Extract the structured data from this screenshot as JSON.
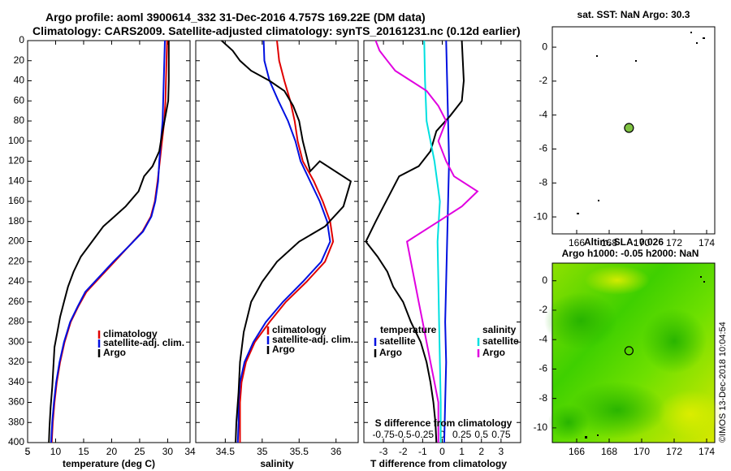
{
  "title": {
    "line1": "Argo profile: aoml 3900614_332 31-Dec-2016 4.757S 169.22E (DM data)",
    "line2": "Climatology: CARS2009. Satellite-adjusted climatology: synTS_20161231.nc (0.12d earlier)"
  },
  "colors": {
    "clim": "#e00000",
    "sat": "#0010e0",
    "argo": "#000000",
    "sat_s": "#00e0e0",
    "argo_s": "#e000e0"
  },
  "depth_ticks": [
    "0",
    "20",
    "40",
    "60",
    "80",
    "100",
    "120",
    "140",
    "160",
    "180",
    "200",
    "220",
    "240",
    "260",
    "280",
    "300",
    "320",
    "340",
    "360",
    "380",
    "400"
  ],
  "chart_data": [
    {
      "type": "line",
      "name": "temperature",
      "xlabel": "temperature (deg C)",
      "ylabel": "depth",
      "xlim": [
        5,
        34
      ],
      "ylim": [
        0,
        400
      ],
      "xticks": [
        "5",
        "10",
        "15",
        "20",
        "25",
        "30"
      ],
      "legend": [
        "climatology",
        "satellite-adj. clim.",
        "Argo"
      ],
      "series": [
        {
          "name": "climatology",
          "color_key": "clim",
          "points": [
            [
              29.9,
              0
            ],
            [
              29.8,
              20
            ],
            [
              29.7,
              40
            ],
            [
              29.6,
              60
            ],
            [
              29.4,
              80
            ],
            [
              29,
              100
            ],
            [
              28.6,
              120
            ],
            [
              28.2,
              140
            ],
            [
              27.7,
              160
            ],
            [
              27,
              175
            ],
            [
              25.5,
              190
            ],
            [
              23,
              205
            ],
            [
              20.5,
              220
            ],
            [
              18,
              235
            ],
            [
              15.5,
              250
            ],
            [
              14,
              265
            ],
            [
              12.7,
              280
            ],
            [
              11.6,
              300
            ],
            [
              10.8,
              320
            ],
            [
              10.2,
              340
            ],
            [
              9.8,
              360
            ],
            [
              9.5,
              380
            ],
            [
              9.3,
              400
            ]
          ]
        },
        {
          "name": "satellite-adj. clim.",
          "color_key": "sat",
          "points": [
            [
              29.5,
              0
            ],
            [
              29.4,
              20
            ],
            [
              29.3,
              40
            ],
            [
              29.2,
              60
            ],
            [
              29.1,
              80
            ],
            [
              28.8,
              100
            ],
            [
              28.5,
              120
            ],
            [
              28.3,
              140
            ],
            [
              27.8,
              160
            ],
            [
              27.1,
              175
            ],
            [
              25.6,
              190
            ],
            [
              23,
              205
            ],
            [
              20.3,
              220
            ],
            [
              17.8,
              235
            ],
            [
              15.3,
              250
            ],
            [
              13.9,
              265
            ],
            [
              12.6,
              280
            ],
            [
              11.5,
              300
            ],
            [
              10.7,
              320
            ],
            [
              10.1,
              340
            ],
            [
              9.7,
              360
            ],
            [
              9.4,
              380
            ],
            [
              9.2,
              400
            ]
          ]
        },
        {
          "name": "Argo",
          "color_key": "argo",
          "points": [
            [
              30.2,
              0
            ],
            [
              30.2,
              20
            ],
            [
              30.2,
              40
            ],
            [
              30.1,
              60
            ],
            [
              29.6,
              75
            ],
            [
              29.1,
              90
            ],
            [
              28.5,
              110
            ],
            [
              27.3,
              125
            ],
            [
              25.8,
              135
            ],
            [
              24.8,
              150
            ],
            [
              22.5,
              165
            ],
            [
              20.5,
              175
            ],
            [
              18.5,
              185
            ],
            [
              16.5,
              200
            ],
            [
              14.5,
              215
            ],
            [
              13.2,
              230
            ],
            [
              12.2,
              245
            ],
            [
              11.5,
              260
            ],
            [
              10.8,
              275
            ],
            [
              10.3,
              290
            ],
            [
              9.8,
              305
            ],
            [
              9.6,
              325
            ],
            [
              9.4,
              345
            ],
            [
              9.1,
              365
            ],
            [
              8.9,
              385
            ],
            [
              8.8,
              400
            ]
          ]
        }
      ]
    },
    {
      "type": "line",
      "name": "salinity",
      "xlabel": "salinity",
      "ylabel": "depth",
      "xlim": [
        34.1,
        36.3
      ],
      "ylim": [
        0,
        400
      ],
      "xticks": [
        "34.5",
        "35",
        "35.5",
        "36"
      ],
      "legend": [
        "climatology",
        "satellite-adj. clim.",
        "Argo"
      ],
      "series": [
        {
          "name": "climatology",
          "color_key": "clim",
          "points": [
            [
              35.2,
              0
            ],
            [
              35.23,
              20
            ],
            [
              35.3,
              40
            ],
            [
              35.38,
              60
            ],
            [
              35.44,
              80
            ],
            [
              35.48,
              100
            ],
            [
              35.55,
              120
            ],
            [
              35.7,
              140
            ],
            [
              35.82,
              160
            ],
            [
              35.92,
              180
            ],
            [
              35.96,
              200
            ],
            [
              35.85,
              220
            ],
            [
              35.6,
              240
            ],
            [
              35.32,
              260
            ],
            [
              35.1,
              280
            ],
            [
              34.9,
              300
            ],
            [
              34.78,
              320
            ],
            [
              34.72,
              340
            ],
            [
              34.7,
              360
            ],
            [
              34.7,
              380
            ],
            [
              34.7,
              400
            ]
          ]
        },
        {
          "name": "satellite-adj. clim.",
          "color_key": "sat",
          "points": [
            [
              35.02,
              0
            ],
            [
              35.03,
              20
            ],
            [
              35.1,
              40
            ],
            [
              35.22,
              60
            ],
            [
              35.35,
              80
            ],
            [
              35.45,
              100
            ],
            [
              35.52,
              120
            ],
            [
              35.65,
              140
            ],
            [
              35.78,
              160
            ],
            [
              35.88,
              180
            ],
            [
              35.92,
              200
            ],
            [
              35.8,
              220
            ],
            [
              35.55,
              240
            ],
            [
              35.28,
              260
            ],
            [
              35.05,
              280
            ],
            [
              34.88,
              300
            ],
            [
              34.76,
              320
            ],
            [
              34.7,
              340
            ],
            [
              34.68,
              360
            ],
            [
              34.68,
              380
            ],
            [
              34.67,
              400
            ]
          ]
        },
        {
          "name": "Argo",
          "color_key": "argo",
          "points": [
            [
              34.45,
              0
            ],
            [
              34.6,
              10
            ],
            [
              34.7,
              20
            ],
            [
              34.85,
              30
            ],
            [
              35.1,
              40
            ],
            [
              35.3,
              50
            ],
            [
              35.42,
              65
            ],
            [
              35.5,
              80
            ],
            [
              35.55,
              100
            ],
            [
              35.6,
              115
            ],
            [
              35.65,
              130
            ],
            [
              35.78,
              120
            ],
            [
              36.2,
              140
            ],
            [
              36.1,
              165
            ],
            [
              35.85,
              185
            ],
            [
              35.5,
              200
            ],
            [
              35.2,
              220
            ],
            [
              35.0,
              240
            ],
            [
              34.85,
              260
            ],
            [
              34.75,
              290
            ],
            [
              34.7,
              320
            ],
            [
              34.68,
              350
            ],
            [
              34.65,
              380
            ],
            [
              34.64,
              400
            ]
          ]
        }
      ]
    },
    {
      "type": "line",
      "name": "difference from climatology",
      "xlabel": "T difference from climatology",
      "x2label": "S difference from climatology",
      "ylabel": "depth",
      "xlim": [
        -4,
        4
      ],
      "ylim": [
        0,
        400
      ],
      "xticks": [
        "-3",
        "-2",
        "-1",
        "0",
        "1",
        "2",
        "3"
      ],
      "x2ticks": [
        "-0.75",
        "-0.5",
        "-0.25",
        "0",
        "0.25",
        "0.5",
        "0.75"
      ],
      "legend_left": {
        "title": "temperature",
        "items": [
          "satellite",
          "Argo"
        ]
      },
      "legend_right": {
        "title": "salinity",
        "items": [
          "satellite",
          "Argo"
        ]
      },
      "series": [
        {
          "name": "T satellite",
          "color_key": "sat",
          "points": [
            [
              0.2,
              0
            ],
            [
              0.25,
              40
            ],
            [
              0.3,
              80
            ],
            [
              0.35,
              120
            ],
            [
              0.3,
              160
            ],
            [
              0.25,
              200
            ],
            [
              0.2,
              240
            ],
            [
              0.15,
              280
            ],
            [
              0.2,
              320
            ],
            [
              0.15,
              360
            ],
            [
              0.1,
              400
            ]
          ]
        },
        {
          "name": "T Argo",
          "color_key": "argo",
          "points": [
            [
              1,
              0
            ],
            [
              1.05,
              20
            ],
            [
              1.1,
              40
            ],
            [
              1.0,
              60
            ],
            [
              0.4,
              75
            ],
            [
              -0.3,
              90
            ],
            [
              -0.6,
              110
            ],
            [
              -1.2,
              125
            ],
            [
              -2.2,
              135
            ],
            [
              -2.6,
              150
            ],
            [
              -3.0,
              165
            ],
            [
              -3.4,
              180
            ],
            [
              -3.9,
              200
            ],
            [
              -3.3,
              215
            ],
            [
              -2.8,
              230
            ],
            [
              -2.5,
              245
            ],
            [
              -2.0,
              260
            ],
            [
              -1.6,
              280
            ],
            [
              -1.1,
              300
            ],
            [
              -0.8,
              320
            ],
            [
              -0.6,
              340
            ],
            [
              -0.45,
              360
            ],
            [
              -0.35,
              380
            ],
            [
              -0.3,
              400
            ]
          ]
        },
        {
          "name": "S satellite",
          "color_key": "sat_s",
          "points": [
            [
              -0.23,
              0
            ],
            [
              -0.22,
              40
            ],
            [
              -0.2,
              80
            ],
            [
              -0.1,
              120
            ],
            [
              -0.03,
              160
            ],
            [
              -0.06,
              200
            ],
            [
              -0.05,
              240
            ],
            [
              -0.04,
              280
            ],
            [
              -0.03,
              320
            ],
            [
              -0.02,
              360
            ],
            [
              -0.02,
              400
            ]
          ]
        },
        {
          "name": "S Argo",
          "color_key": "argo_s",
          "points": [
            [
              -0.85,
              0
            ],
            [
              -0.8,
              10
            ],
            [
              -0.7,
              20
            ],
            [
              -0.6,
              30
            ],
            [
              -0.4,
              40
            ],
            [
              -0.2,
              50
            ],
            [
              -0.05,
              65
            ],
            [
              0.05,
              80
            ],
            [
              -0.05,
              100
            ],
            [
              0.05,
              120
            ],
            [
              0.15,
              135
            ],
            [
              0.45,
              150
            ],
            [
              0.25,
              165
            ],
            [
              -0.05,
              180
            ],
            [
              -0.45,
              200
            ],
            [
              -0.4,
              220
            ],
            [
              -0.35,
              240
            ],
            [
              -0.3,
              260
            ],
            [
              -0.25,
              280
            ],
            [
              -0.2,
              300
            ],
            [
              -0.15,
              320
            ],
            [
              -0.1,
              340
            ],
            [
              -0.05,
              360
            ],
            [
              -0.05,
              380
            ],
            [
              -0.05,
              400
            ]
          ]
        }
      ]
    },
    {
      "type": "scatter",
      "name": "sst map",
      "title": "sat. SST: NaN Argo: 30.3",
      "xlim": [
        164.5,
        174.5
      ],
      "ylim": [
        -11,
        1.2
      ],
      "xticks": [
        "166",
        "168",
        "170",
        "172",
        "174"
      ],
      "yticks": [
        "0",
        "-2",
        "-4",
        "-6",
        "-8",
        "-10"
      ],
      "marker": [
        169.22,
        -4.757
      ]
    },
    {
      "type": "heatmap",
      "name": "altimetry map",
      "title1": "Altim. SLA: 0.026",
      "title2": "Argo h1000: -0.05 h2000: NaN",
      "xlim": [
        164.5,
        174.5
      ],
      "ylim": [
        -11,
        1.2
      ],
      "xticks": [
        "166",
        "168",
        "170",
        "172",
        "174"
      ],
      "yticks": [
        "0",
        "-2",
        "-4",
        "-6",
        "-8",
        "-10"
      ],
      "marker": [
        169.22,
        -4.757
      ]
    }
  ],
  "footer": "©IMOS 13-Dec-2018 10:04:54"
}
